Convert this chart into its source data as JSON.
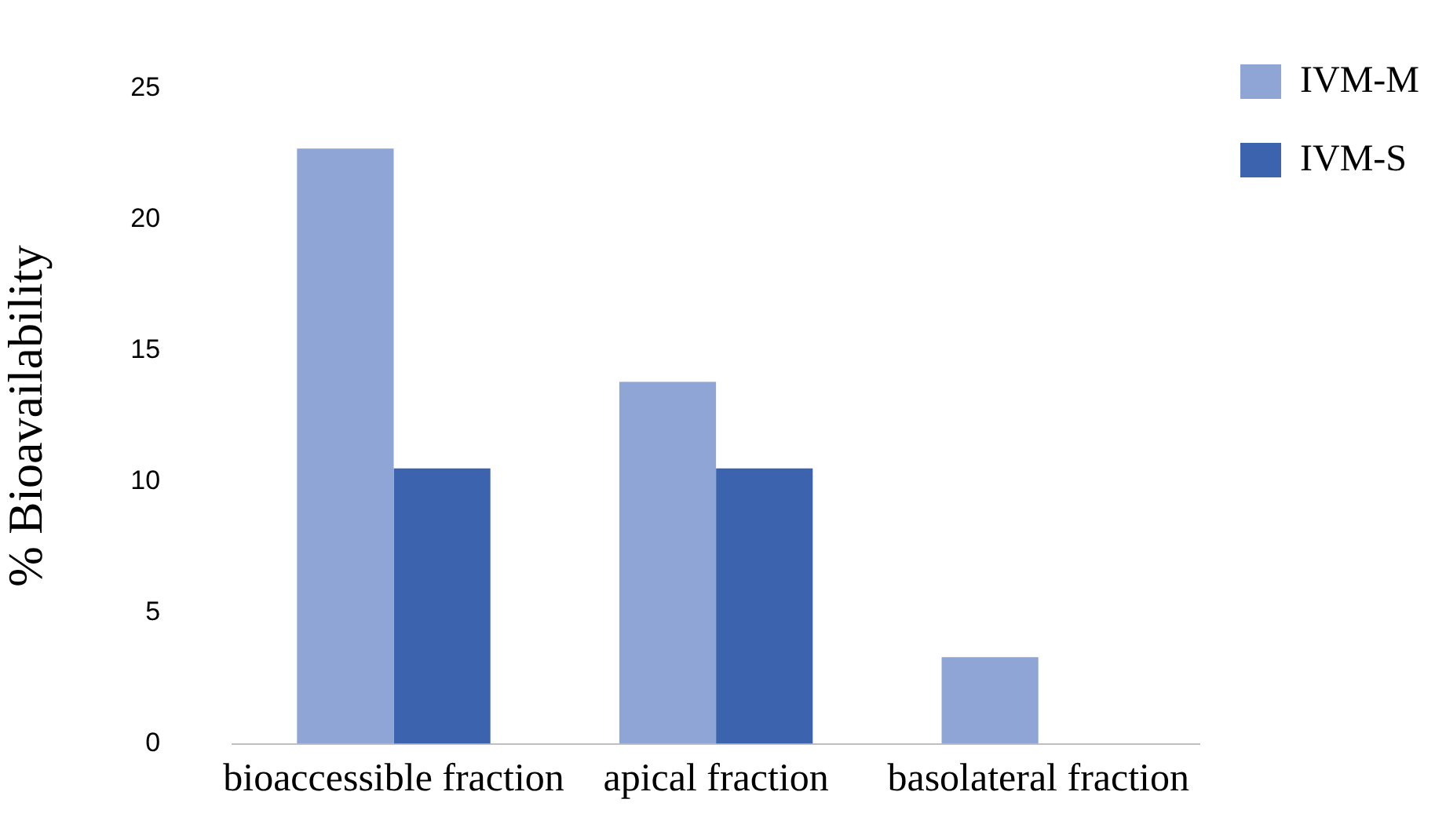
{
  "chart_data": {
    "type": "bar",
    "ylabel": "% Bioavailability",
    "categories": [
      "bioaccessible fraction",
      "apical fraction",
      "basolateral fraction"
    ],
    "series": [
      {
        "name": "IVM-M",
        "color": "#8fa5d6",
        "values": [
          22.7,
          13.8,
          3.3
        ]
      },
      {
        "name": "IVM-S",
        "color": "#3c63ad",
        "values": [
          10.5,
          10.5,
          0
        ]
      }
    ],
    "ylim": [
      0,
      25
    ],
    "yticks": [
      0,
      5,
      10,
      15,
      20,
      25
    ],
    "grid": false,
    "legend": "right"
  }
}
